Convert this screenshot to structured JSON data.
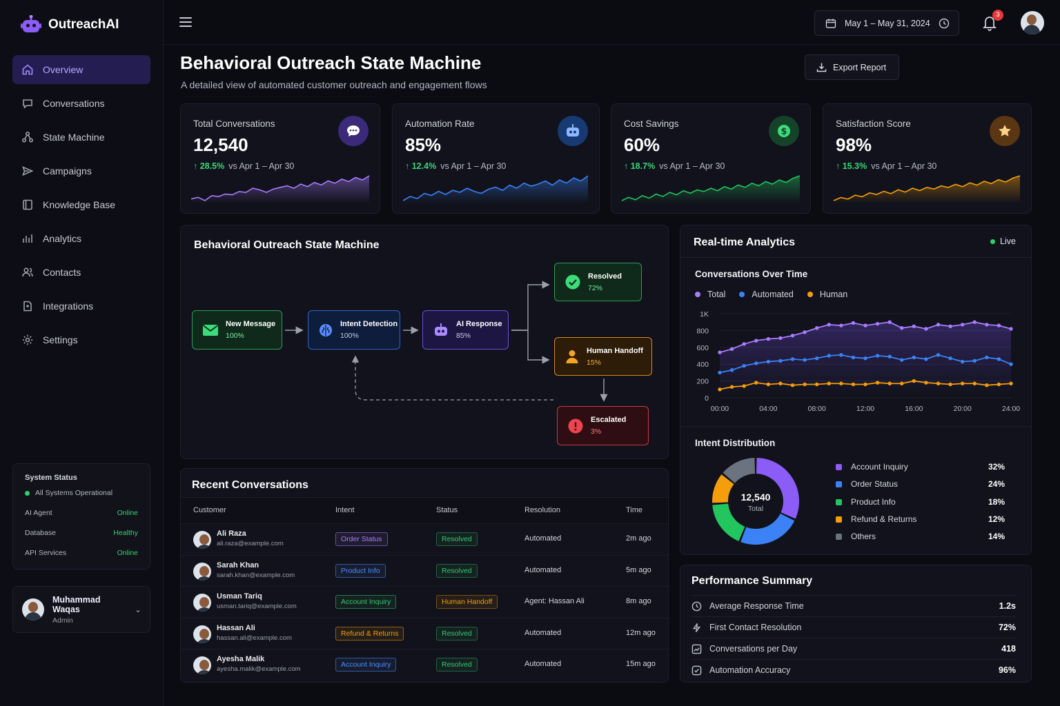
{
  "app": {
    "name": "OutreachAI"
  },
  "nav": [
    {
      "label": "Overview",
      "icon": "home-icon",
      "active": true
    },
    {
      "label": "Conversations",
      "icon": "chat-icon"
    },
    {
      "label": "State Machine",
      "icon": "state-machine-icon"
    },
    {
      "label": "Campaigns",
      "icon": "send-icon"
    },
    {
      "label": "Knowledge Base",
      "icon": "book-icon"
    },
    {
      "label": "Analytics",
      "icon": "bar-chart-icon"
    },
    {
      "label": "Contacts",
      "icon": "users-icon"
    },
    {
      "label": "Integrations",
      "icon": "puzzle-icon"
    },
    {
      "label": "Settings",
      "icon": "gear-icon"
    }
  ],
  "system_status": {
    "title": "System Status",
    "overall": "All Systems Operational",
    "rows": [
      {
        "label": "AI Agent",
        "value": "Online"
      },
      {
        "label": "Database",
        "value": "Healthy"
      },
      {
        "label": "API Services",
        "value": "Online"
      }
    ]
  },
  "user": {
    "name": "Muhammad Waqas",
    "role": "Admin"
  },
  "header": {
    "date_range": "May 1 – May 31, 2024",
    "notifications": "3"
  },
  "page": {
    "title": "Behavioral Outreach State Machine",
    "subtitle": "A detailed view of automated customer outreach and engagement flows",
    "export_label": "Export Report"
  },
  "kpis": [
    {
      "label": "Total Conversations",
      "value": "12,540",
      "delta": "28.5%",
      "compare": "vs Apr 1 – Apr 30",
      "color": "#a97cff",
      "icon": "chat-bubble-icon",
      "trend": [
        22,
        24,
        20,
        26,
        25,
        28,
        27,
        31,
        30,
        35,
        33,
        30,
        34,
        36,
        38,
        35,
        40,
        37,
        42,
        39,
        44,
        41,
        46,
        43,
        48,
        45,
        50
      ]
    },
    {
      "label": "Automation Rate",
      "value": "85%",
      "delta": "12.4%",
      "compare": "vs Apr 1 – Apr 30",
      "color": "#3b82f6",
      "icon": "robot-icon",
      "trend": [
        18,
        22,
        20,
        25,
        23,
        27,
        24,
        28,
        26,
        30,
        27,
        25,
        29,
        31,
        28,
        33,
        30,
        35,
        32,
        34,
        37,
        33,
        38,
        35,
        40,
        37,
        42
      ]
    },
    {
      "label": "Cost Savings",
      "value": "60%",
      "delta": "18.7%",
      "compare": "vs Apr 1 – Apr 30",
      "color": "#22c55e",
      "icon": "dollar-icon",
      "trend": [
        14,
        18,
        15,
        20,
        17,
        22,
        19,
        24,
        21,
        26,
        23,
        27,
        25,
        29,
        26,
        31,
        28,
        33,
        30,
        35,
        32,
        37,
        34,
        39,
        36,
        41,
        44
      ]
    },
    {
      "label": "Satisfaction Score",
      "value": "98%",
      "delta": "15.3%",
      "compare": "vs Apr 1 – Apr 30",
      "color": "#f59e0b",
      "icon": "star-icon",
      "trend": [
        16,
        20,
        18,
        23,
        21,
        26,
        24,
        28,
        25,
        30,
        27,
        32,
        29,
        33,
        31,
        35,
        33,
        37,
        34,
        39,
        36,
        41,
        38,
        43,
        40,
        45,
        48
      ]
    }
  ],
  "state_machine": {
    "title": "Behavioral Outreach State Machine",
    "nodes": [
      {
        "key": "new",
        "label": "New Message",
        "pct": "100%"
      },
      {
        "key": "intent",
        "label": "Intent Detection",
        "pct": "100%"
      },
      {
        "key": "ai",
        "label": "AI Response",
        "pct": "85%"
      },
      {
        "key": "resolved",
        "label": "Resolved",
        "pct": "72%"
      },
      {
        "key": "handoff",
        "label": "Human Handoff",
        "pct": "15%"
      },
      {
        "key": "escalated",
        "label": "Escalated",
        "pct": "3%"
      }
    ]
  },
  "recent": {
    "title": "Recent Conversations",
    "columns": [
      "Customer",
      "Intent",
      "Status",
      "Resolution",
      "Time"
    ],
    "rows": [
      {
        "name": "Ali Raza",
        "email": "ali.raza@example.com",
        "intent": "Order Status",
        "intent_color": "#a97cff",
        "status": "Resolved",
        "status_color": "#34c86a",
        "resolution": "Automated",
        "time": "2m ago"
      },
      {
        "name": "Sarah Khan",
        "email": "sarah.khan@example.com",
        "intent": "Product Info",
        "intent_color": "#4f8bff",
        "status": "Resolved",
        "status_color": "#34c86a",
        "resolution": "Automated",
        "time": "5m ago"
      },
      {
        "name": "Usman Tariq",
        "email": "usman.tariq@example.com",
        "intent": "Account Inquiry",
        "intent_color": "#34c86a",
        "status": "Human Handoff",
        "status_color": "#f59e0b",
        "resolution": "Agent: Hassan Ali",
        "time": "8m ago"
      },
      {
        "name": "Hassan Ali",
        "email": "hassan.ali@example.com",
        "intent": "Refund & Returns",
        "intent_color": "#f59e0b",
        "status": "Resolved",
        "status_color": "#34c86a",
        "resolution": "Automated",
        "time": "12m ago"
      },
      {
        "name": "Ayesha Malik",
        "email": "ayesha.malik@example.com",
        "intent": "Account Inquiry",
        "intent_color": "#4f8bff",
        "status": "Resolved",
        "status_color": "#34c86a",
        "resolution": "Automated",
        "time": "15m ago"
      }
    ]
  },
  "analytics": {
    "title": "Real-time Analytics",
    "live_label": "Live",
    "chart_title": "Conversations Over Time"
  },
  "chart_data": {
    "type": "line",
    "title": "Conversations Over Time",
    "x": [
      "00:00",
      "01:00",
      "02:00",
      "03:00",
      "04:00",
      "05:00",
      "06:00",
      "07:00",
      "08:00",
      "09:00",
      "10:00",
      "11:00",
      "12:00",
      "13:00",
      "14:00",
      "15:00",
      "16:00",
      "17:00",
      "18:00",
      "19:00",
      "20:00",
      "21:00",
      "22:00",
      "23:00",
      "24:00"
    ],
    "xticks": [
      "00:00",
      "04:00",
      "08:00",
      "12:00",
      "16:00",
      "20:00",
      "24:00"
    ],
    "yticks": [
      "0",
      "200",
      "400",
      "600",
      "800",
      "1K"
    ],
    "ylim": [
      0,
      1000
    ],
    "series": [
      {
        "name": "Total",
        "color": "#a97cff",
        "values": [
          540,
          580,
          640,
          680,
          700,
          710,
          740,
          780,
          830,
          870,
          860,
          890,
          860,
          880,
          900,
          830,
          850,
          820,
          870,
          850,
          870,
          900,
          870,
          860,
          820
        ]
      },
      {
        "name": "Automated",
        "color": "#3b82f6",
        "values": [
          300,
          330,
          380,
          410,
          430,
          440,
          460,
          450,
          470,
          500,
          510,
          480,
          470,
          500,
          490,
          450,
          480,
          460,
          510,
          470,
          430,
          440,
          480,
          460,
          400
        ]
      },
      {
        "name": "Human",
        "color": "#f59e0b",
        "values": [
          100,
          130,
          140,
          180,
          160,
          170,
          150,
          160,
          160,
          170,
          170,
          160,
          160,
          180,
          170,
          170,
          200,
          180,
          170,
          160,
          170,
          170,
          150,
          160,
          170
        ]
      }
    ],
    "legend": "top-left"
  },
  "intent": {
    "title": "Intent Distribution",
    "total_value": "12,540",
    "total_label": "Total",
    "items": [
      {
        "label": "Account Inquiry",
        "pct": "32%",
        "value": 32,
        "color": "#8b5cf6"
      },
      {
        "label": "Order Status",
        "pct": "24%",
        "value": 24,
        "color": "#3b82f6"
      },
      {
        "label": "Product Info",
        "pct": "18%",
        "value": 18,
        "color": "#22c55e"
      },
      {
        "label": "Refund & Returns",
        "pct": "12%",
        "value": 12,
        "color": "#f59e0b"
      },
      {
        "label": "Others",
        "pct": "14%",
        "value": 14,
        "color": "#6b7280"
      }
    ]
  },
  "performance": {
    "title": "Performance Summary",
    "rows": [
      {
        "label": "Average Response Time",
        "value": "1.2s",
        "icon": "clock-icon"
      },
      {
        "label": "First Contact Resolution",
        "value": "72%",
        "icon": "lightning-icon"
      },
      {
        "label": "Conversations per Day",
        "value": "418",
        "icon": "trend-icon"
      },
      {
        "label": "Automation Accuracy",
        "value": "96%",
        "icon": "check-circle-icon"
      }
    ]
  }
}
